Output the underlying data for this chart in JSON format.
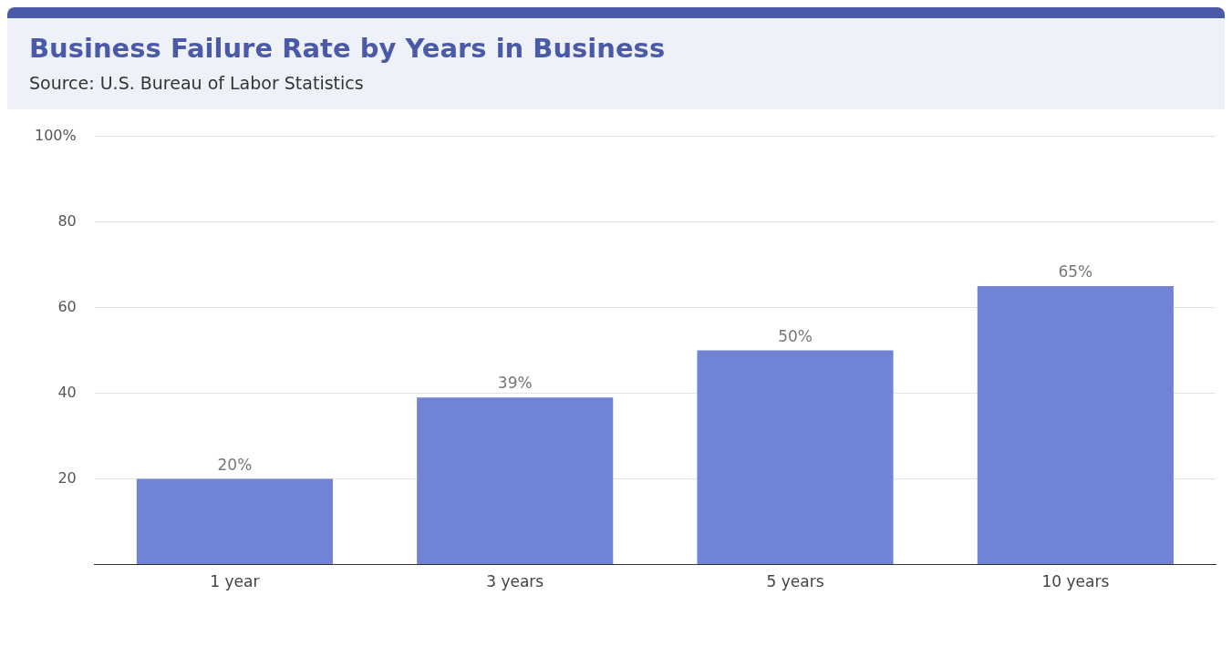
{
  "chart_data": {
    "type": "bar",
    "title": "Business Failure Rate by Years in Business",
    "subtitle": "Source: U.S. Bureau of Labor Statistics",
    "categories": [
      "1 year",
      "3 years",
      "5 years",
      "10 years"
    ],
    "values": [
      20,
      39,
      50,
      65
    ],
    "value_labels": [
      "20%",
      "39%",
      "50%",
      "65%"
    ],
    "color": "#7083d4",
    "ylim": [
      0,
      100
    ],
    "yticks": [
      {
        "value": 0,
        "label": null
      },
      20,
      40,
      60,
      80,
      {
        "value": 100,
        "label": "100%"
      }
    ],
    "grid": "y",
    "legend": false
  }
}
